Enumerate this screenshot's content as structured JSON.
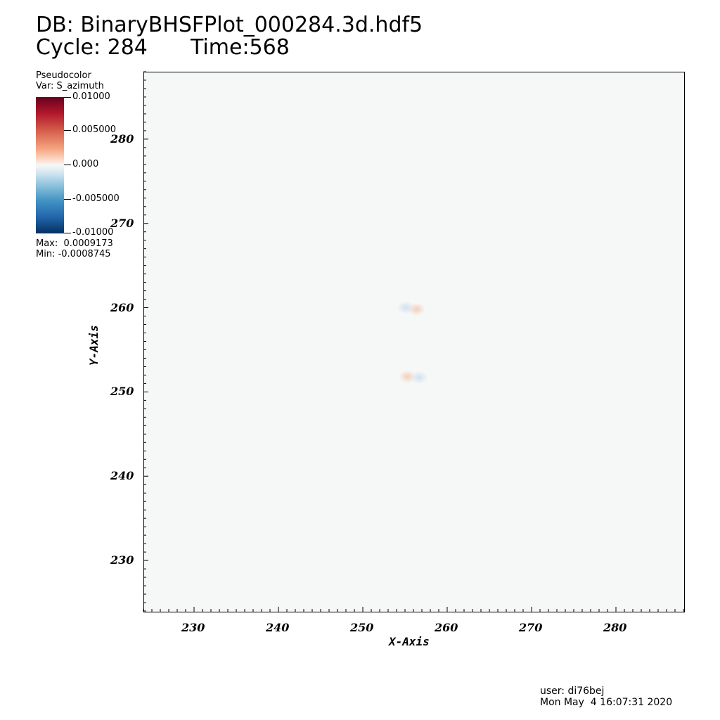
{
  "header": {
    "db_line": "DB: BinaryBHSFPlot_000284.3d.hdf5",
    "cycle_line": "Cycle: 284",
    "time_line": "Time:568"
  },
  "legend": {
    "plot_type": "Pseudocolor",
    "variable": "Var: S_azimuth",
    "ticks": [
      "0.01000",
      "0.005000",
      "0.000",
      "-0.005000",
      "-0.01000"
    ],
    "max_label": "Max:  0.0009173",
    "min_label": "Min: -0.0008745",
    "colormap": [
      "#67001f",
      "#b2182b",
      "#d6604d",
      "#f4a582",
      "#fddbc7",
      "#f7f7f7",
      "#d1e5f0",
      "#92c5de",
      "#4393c3",
      "#2166ac",
      "#053061"
    ]
  },
  "chart_data": {
    "type": "heatmap",
    "title": "",
    "xlabel": "X-Axis",
    "ylabel": "Y-Axis",
    "xlim": [
      224,
      288
    ],
    "ylim": [
      224,
      288
    ],
    "x_ticks": [
      230,
      240,
      250,
      260,
      270,
      280
    ],
    "y_ticks": [
      230,
      240,
      250,
      260,
      270,
      280
    ],
    "field_value": 0.0,
    "features": [
      {
        "x": 255.0,
        "y": 260.1,
        "value": -0.0008,
        "color": "#c9dcec"
      },
      {
        "x": 256.3,
        "y": 259.9,
        "value": 0.0009,
        "color": "#f3c6b0"
      },
      {
        "x": 255.2,
        "y": 251.9,
        "value": 0.0009,
        "color": "#f3c6b0"
      },
      {
        "x": 256.6,
        "y": 251.8,
        "value": -0.0008,
        "color": "#c9dcec"
      }
    ]
  },
  "footer": {
    "user": "user: di76bej",
    "date": "Mon May  4 16:07:31 2020"
  }
}
